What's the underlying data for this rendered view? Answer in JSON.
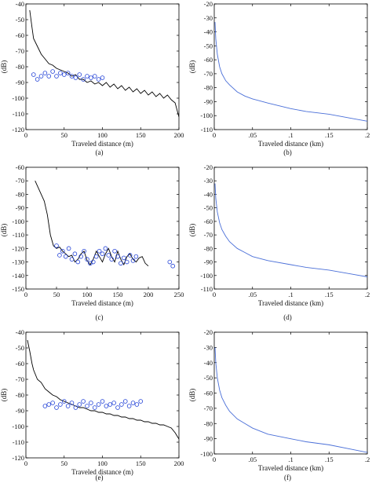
{
  "chart_data": [
    {
      "type": "line",
      "panel_label": "(a)",
      "xlabel": "Traveled distance (m)",
      "ylabel": "(dB)",
      "xlim": [
        0,
        200
      ],
      "ylim": [
        -120,
        -40
      ],
      "xticks": [
        0,
        50,
        100,
        150,
        200
      ],
      "yticks": [
        -120,
        -110,
        -100,
        -90,
        -80,
        -70,
        -60,
        -50,
        -40
      ],
      "grid": false,
      "series": [
        {
          "kind": "line",
          "color": "#000000",
          "x": [
            5,
            8,
            10,
            15,
            20,
            25,
            30,
            35,
            40,
            45,
            50,
            55,
            60,
            65,
            70,
            75,
            80,
            85,
            90,
            95,
            100,
            105,
            110,
            115,
            120,
            125,
            130,
            135,
            140,
            145,
            150,
            155,
            160,
            165,
            170,
            175,
            180,
            185,
            190,
            195,
            200
          ],
          "y": [
            -44,
            -55,
            -62,
            -67,
            -72,
            -75,
            -78,
            -79,
            -81,
            -82,
            -83,
            -84,
            -86,
            -85,
            -88,
            -88,
            -90,
            -89,
            -91,
            -90,
            -92,
            -90,
            -93,
            -91,
            -94,
            -92,
            -95,
            -93,
            -96,
            -94,
            -97,
            -95,
            -98,
            -96,
            -99,
            -97,
            -100,
            -98,
            -101,
            -103,
            -112
          ]
        },
        {
          "kind": "scatter",
          "color": "#1f3fd6",
          "x": [
            10,
            15,
            20,
            25,
            30,
            35,
            40,
            45,
            50,
            55,
            60,
            65,
            70,
            75,
            80,
            85,
            90,
            95,
            100
          ],
          "y": [
            -85,
            -88,
            -86,
            -84,
            -86,
            -83,
            -86,
            -84,
            -85,
            -84,
            -86,
            -87,
            -85,
            -88,
            -86,
            -87,
            -86,
            -88,
            -87
          ]
        }
      ]
    },
    {
      "type": "line",
      "panel_label": "(b)",
      "xlabel": "Traveled distance (km)",
      "ylabel": "(dB)",
      "xlim": [
        0,
        0.2
      ],
      "ylim": [
        -110,
        -20
      ],
      "xticks": [
        0,
        0.05,
        0.1,
        0.15,
        0.2
      ],
      "yticks": [
        -110,
        -100,
        -90,
        -80,
        -70,
        -60,
        -50,
        -40,
        -30,
        -20
      ],
      "grid": false,
      "series": [
        {
          "kind": "line",
          "color": "#4a6fd8",
          "x": [
            0.001,
            0.002,
            0.004,
            0.007,
            0.01,
            0.015,
            0.02,
            0.03,
            0.04,
            0.05,
            0.07,
            0.1,
            0.12,
            0.15,
            0.18,
            0.2
          ],
          "y": [
            -33,
            -45,
            -56,
            -65,
            -70,
            -75,
            -78,
            -83,
            -86,
            -88,
            -91,
            -95,
            -97,
            -99,
            -102,
            -104
          ]
        }
      ]
    },
    {
      "type": "line",
      "panel_label": "(c)",
      "xlabel": "Traveled distance (m)",
      "ylabel": "(dB)",
      "xlim": [
        0,
        250
      ],
      "ylim": [
        -150,
        -60
      ],
      "xticks": [
        0,
        50,
        100,
        150,
        200,
        250
      ],
      "yticks": [
        -150,
        -140,
        -130,
        -120,
        -110,
        -100,
        -90,
        -80,
        -70,
        -60
      ],
      "grid": false,
      "series": [
        {
          "kind": "line",
          "color": "#000000",
          "x": [
            15,
            20,
            25,
            30,
            35,
            40,
            45,
            50,
            55,
            60,
            65,
            70,
            75,
            80,
            85,
            90,
            95,
            100,
            105,
            110,
            115,
            120,
            125,
            130,
            135,
            140,
            145,
            150,
            155,
            160,
            165,
            170,
            175,
            180,
            185,
            190,
            195,
            200
          ],
          "y": [
            -70,
            -75,
            -80,
            -85,
            -95,
            -110,
            -118,
            -120,
            -119,
            -122,
            -124,
            -126,
            -125,
            -130,
            -128,
            -124,
            -122,
            -129,
            -132,
            -128,
            -122,
            -126,
            -130,
            -124,
            -120,
            -126,
            -130,
            -122,
            -128,
            -132,
            -126,
            -124,
            -128,
            -130,
            -127,
            -126,
            -131,
            -133
          ]
        },
        {
          "kind": "scatter",
          "color": "#1f3fd6",
          "x": [
            50,
            55,
            60,
            65,
            70,
            75,
            80,
            85,
            90,
            95,
            100,
            105,
            110,
            115,
            120,
            125,
            130,
            135,
            140,
            145,
            150,
            155,
            160,
            165,
            170,
            175,
            180,
            235,
            240
          ],
          "y": [
            -118,
            -125,
            -122,
            -126,
            -120,
            -128,
            -124,
            -130,
            -126,
            -122,
            -128,
            -131,
            -130,
            -126,
            -122,
            -124,
            -120,
            -125,
            -128,
            -122,
            -126,
            -131,
            -127,
            -130,
            -125,
            -129,
            -126,
            -130,
            -133
          ]
        }
      ]
    },
    {
      "type": "line",
      "panel_label": "(d)",
      "xlabel": "Traveled distance (km)",
      "ylabel": "(dB)",
      "xlim": [
        0,
        0.2
      ],
      "ylim": [
        -110,
        -20
      ],
      "xticks": [
        0,
        0.05,
        0.1,
        0.15,
        0.2
      ],
      "yticks": [
        -110,
        -100,
        -90,
        -80,
        -70,
        -60,
        -50,
        -40,
        -30,
        -20
      ],
      "grid": false,
      "series": [
        {
          "kind": "line",
          "color": "#4a6fd8",
          "x": [
            0.001,
            0.002,
            0.004,
            0.007,
            0.01,
            0.015,
            0.02,
            0.03,
            0.04,
            0.05,
            0.07,
            0.1,
            0.12,
            0.15,
            0.18,
            0.2
          ],
          "y": [
            -32,
            -43,
            -53,
            -61,
            -66,
            -71,
            -75,
            -80,
            -83,
            -86,
            -89,
            -92,
            -94,
            -96,
            -99,
            -101
          ]
        }
      ]
    },
    {
      "type": "line",
      "panel_label": "(e)",
      "xlabel": "Traveled distance (m)",
      "ylabel": "(dB)",
      "xlim": [
        0,
        200
      ],
      "ylim": [
        -120,
        -40
      ],
      "xticks": [
        0,
        50,
        100,
        150,
        200
      ],
      "yticks": [
        -120,
        -110,
        -100,
        -90,
        -80,
        -70,
        -60,
        -50,
        -40
      ],
      "grid": false,
      "series": [
        {
          "kind": "line",
          "color": "#000000",
          "x": [
            2,
            5,
            8,
            10,
            15,
            20,
            25,
            30,
            35,
            40,
            45,
            50,
            55,
            60,
            65,
            70,
            75,
            80,
            85,
            90,
            95,
            100,
            105,
            110,
            115,
            120,
            125,
            130,
            135,
            140,
            145,
            150,
            155,
            160,
            165,
            170,
            175,
            180,
            185,
            190,
            195,
            200
          ],
          "y": [
            -45,
            -52,
            -60,
            -64,
            -70,
            -72,
            -76,
            -78,
            -80,
            -81,
            -83,
            -84,
            -85,
            -86,
            -87,
            -88,
            -88,
            -89,
            -90,
            -90,
            -91,
            -91,
            -92,
            -92,
            -93,
            -93,
            -94,
            -94,
            -95,
            -95,
            -96,
            -96,
            -97,
            -97,
            -98,
            -98,
            -99,
            -99,
            -100,
            -101,
            -104,
            -108
          ]
        },
        {
          "kind": "scatter",
          "color": "#1f3fd6",
          "x": [
            25,
            30,
            35,
            40,
            45,
            50,
            55,
            60,
            65,
            70,
            75,
            80,
            85,
            90,
            95,
            100,
            105,
            110,
            115,
            120,
            125,
            130,
            135,
            140,
            145,
            150
          ],
          "y": [
            -87,
            -86,
            -85,
            -88,
            -86,
            -84,
            -87,
            -85,
            -88,
            -86,
            -84,
            -87,
            -85,
            -88,
            -86,
            -84,
            -87,
            -86,
            -85,
            -88,
            -86,
            -84,
            -87,
            -85,
            -86,
            -84
          ]
        }
      ]
    },
    {
      "type": "line",
      "panel_label": "(f)",
      "xlabel": "Traveled distance (km)",
      "ylabel": "(dB)",
      "xlim": [
        0,
        0.2
      ],
      "ylim": [
        -100,
        -20
      ],
      "xticks": [
        0,
        0.05,
        0.1,
        0.15,
        0.2
      ],
      "yticks": [
        -100,
        -90,
        -80,
        -70,
        -60,
        -50,
        -40,
        -30,
        -20
      ],
      "grid": false,
      "series": [
        {
          "kind": "line",
          "color": "#4a6fd8",
          "x": [
            0.001,
            0.002,
            0.004,
            0.007,
            0.01,
            0.015,
            0.02,
            0.03,
            0.04,
            0.05,
            0.07,
            0.1,
            0.12,
            0.15,
            0.18,
            0.2
          ],
          "y": [
            -30,
            -40,
            -50,
            -58,
            -63,
            -68,
            -72,
            -77,
            -80,
            -83,
            -87,
            -90,
            -92,
            -94,
            -97,
            -99
          ]
        }
      ]
    }
  ]
}
